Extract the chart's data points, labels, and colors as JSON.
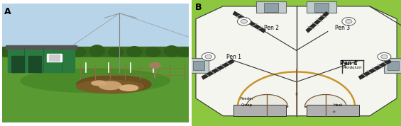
{
  "bg_color": "#FFFFFF",
  "green_outer": "#8DC63F",
  "interior_fill": "#F5F5F0",
  "gray_nb": "#B8C4C8",
  "gray_nb_inner": "#8FA0A8",
  "orange_arch": "#C8952A",
  "brown_line": "#7B5B3A",
  "gray_creep": "#AAAAAA",
  "dark_line": "#333333",
  "mid_line": "#666666",
  "label_A": "A",
  "label_B": "B",
  "pen1": "Pen 1",
  "pen2": "Pen 2",
  "pen3": "Pen 3",
  "pen4": "Pen 4",
  "feeder": "Feeder",
  "creep": "Creep",
  "pendulum": "Pendulum",
  "heat": "Heat",
  "sky_top": "#A8C8E0",
  "sky_bot": "#C0D8E8",
  "grass_dark": "#4A8A28",
  "grass_mid": "#5A9A32",
  "grass_light": "#6AAA3C",
  "building_green": "#2A7A40",
  "building_roof": "#888888",
  "dirt_color": "#8B7040",
  "pig_color": "#D0A888",
  "tree_dark": "#2A6820",
  "tree_mid": "#3A7828"
}
